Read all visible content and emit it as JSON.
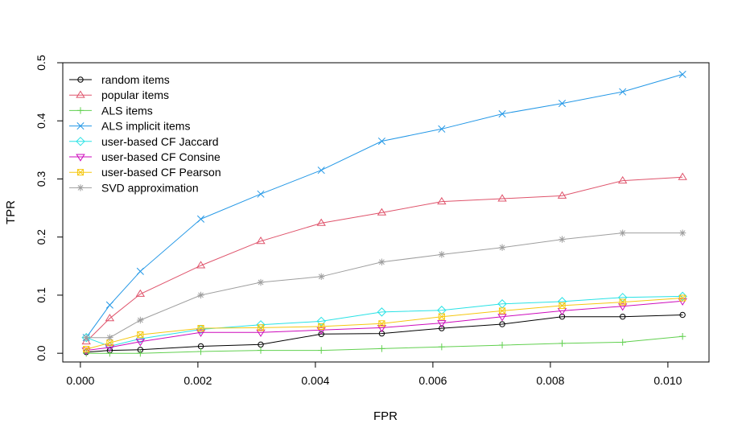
{
  "chart_data": {
    "type": "line",
    "title": "",
    "xlabel": "FPR",
    "ylabel": "TPR",
    "xlim": [
      -0.0003,
      0.0107
    ],
    "ylim": [
      -0.015,
      0.5
    ],
    "xticks": [
      0.0,
      0.002,
      0.004,
      0.006,
      0.008,
      0.01
    ],
    "xtick_labels": [
      "0.000",
      "0.002",
      "0.004",
      "0.006",
      "0.008",
      "0.010"
    ],
    "yticks": [
      0.0,
      0.1,
      0.2,
      0.3,
      0.4,
      0.5
    ],
    "ytick_labels": [
      "0.0",
      "0.1",
      "0.2",
      "0.3",
      "0.4",
      "0.5"
    ],
    "grid": false,
    "legend_position": "top-left",
    "x": [
      0.0001,
      0.0005,
      0.00102,
      0.00205,
      0.00307,
      0.0041,
      0.00513,
      0.00615,
      0.00718,
      0.0082,
      0.00923,
      0.01025
    ],
    "series": [
      {
        "name": "random items",
        "color": "#000000",
        "marker": "circle",
        "values": [
          0.002,
          0.005,
          0.006,
          0.012,
          0.015,
          0.033,
          0.034,
          0.043,
          0.05,
          0.063,
          0.063,
          0.066
        ]
      },
      {
        "name": "popular items",
        "color": "#DF536B",
        "marker": "triangle-up",
        "values": [
          0.02,
          0.06,
          0.102,
          0.151,
          0.193,
          0.224,
          0.242,
          0.261,
          0.266,
          0.271,
          0.297,
          0.303
        ]
      },
      {
        "name": "ALS items",
        "color": "#61D04F",
        "marker": "plus",
        "values": [
          0.0,
          0.0,
          0.0,
          0.003,
          0.005,
          0.005,
          0.008,
          0.011,
          0.014,
          0.017,
          0.019,
          0.029
        ]
      },
      {
        "name": "ALS implicit items",
        "color": "#2297E6",
        "marker": "cross",
        "values": [
          0.027,
          0.083,
          0.141,
          0.231,
          0.274,
          0.315,
          0.365,
          0.386,
          0.412,
          0.43,
          0.45,
          0.48
        ]
      },
      {
        "name": "user-based CF Jaccard",
        "color": "#28E2E5",
        "marker": "diamond",
        "values": [
          0.027,
          0.012,
          0.025,
          0.041,
          0.049,
          0.055,
          0.071,
          0.074,
          0.085,
          0.089,
          0.096,
          0.098
        ]
      },
      {
        "name": "user-based CF Consine",
        "color": "#CD0BBC",
        "marker": "triangle-down",
        "values": [
          0.005,
          0.01,
          0.02,
          0.036,
          0.036,
          0.04,
          0.044,
          0.052,
          0.063,
          0.073,
          0.081,
          0.09
        ]
      },
      {
        "name": "user-based CF Pearson",
        "color": "#F5C710",
        "marker": "square-x",
        "values": [
          0.007,
          0.018,
          0.032,
          0.043,
          0.044,
          0.046,
          0.051,
          0.063,
          0.073,
          0.082,
          0.088,
          0.095
        ]
      },
      {
        "name": "SVD approximation",
        "color": "#9E9E9E",
        "marker": "asterisk",
        "values": [
          0.027,
          0.027,
          0.057,
          0.1,
          0.122,
          0.132,
          0.157,
          0.17,
          0.182,
          0.196,
          0.207,
          0.207
        ]
      }
    ]
  }
}
